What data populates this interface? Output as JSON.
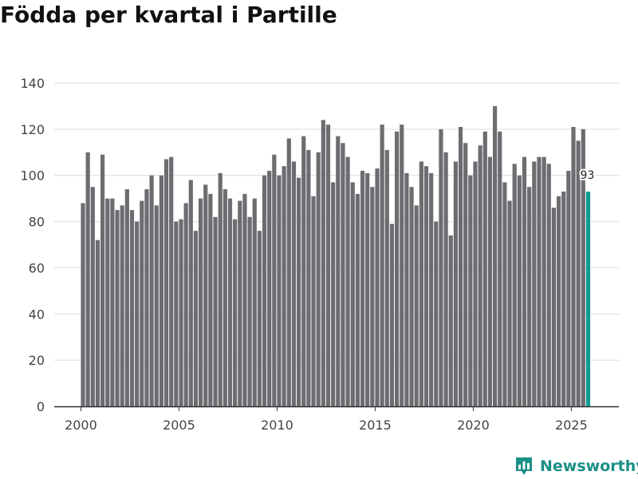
{
  "colors": {
    "bar": "#6d6c71",
    "highlight": "#0f9b8e",
    "grid": "#dcdcdc",
    "axis": "#333333",
    "brand": "#1a8f86"
  },
  "brand": {
    "name": "Newsworthy",
    "icon": "newsworthy-chart-icon"
  },
  "chart_data": {
    "type": "bar",
    "title": "Födda per kvartal i Partille",
    "xlabel": "",
    "ylabel": "",
    "ylim": [
      0,
      140
    ],
    "yticks": [
      0,
      20,
      40,
      60,
      80,
      100,
      120,
      140
    ],
    "xticks": [
      2000,
      2005,
      2010,
      2015,
      2020,
      2025
    ],
    "x_start": 2000,
    "quarters_per_year": 4,
    "grid": true,
    "highlight_last": true,
    "last_value_label": "93",
    "values": [
      88,
      110,
      95,
      72,
      109,
      90,
      90,
      85,
      87,
      94,
      85,
      80,
      89,
      94,
      100,
      87,
      100,
      107,
      108,
      80,
      81,
      88,
      98,
      76,
      90,
      96,
      92,
      82,
      101,
      94,
      90,
      81,
      89,
      92,
      82,
      90,
      76,
      100,
      102,
      109,
      100,
      104,
      116,
      106,
      99,
      117,
      111,
      91,
      110,
      124,
      122,
      97,
      117,
      114,
      108,
      97,
      92,
      102,
      101,
      95,
      103,
      122,
      111,
      79,
      119,
      122,
      101,
      95,
      87,
      106,
      104,
      101,
      80,
      120,
      110,
      74,
      106,
      121,
      114,
      100,
      106,
      113,
      119,
      108,
      130,
      119,
      97,
      89,
      105,
      100,
      108,
      95,
      106,
      108,
      108,
      105,
      86,
      91,
      93,
      102,
      121,
      115,
      120,
      93
    ]
  }
}
